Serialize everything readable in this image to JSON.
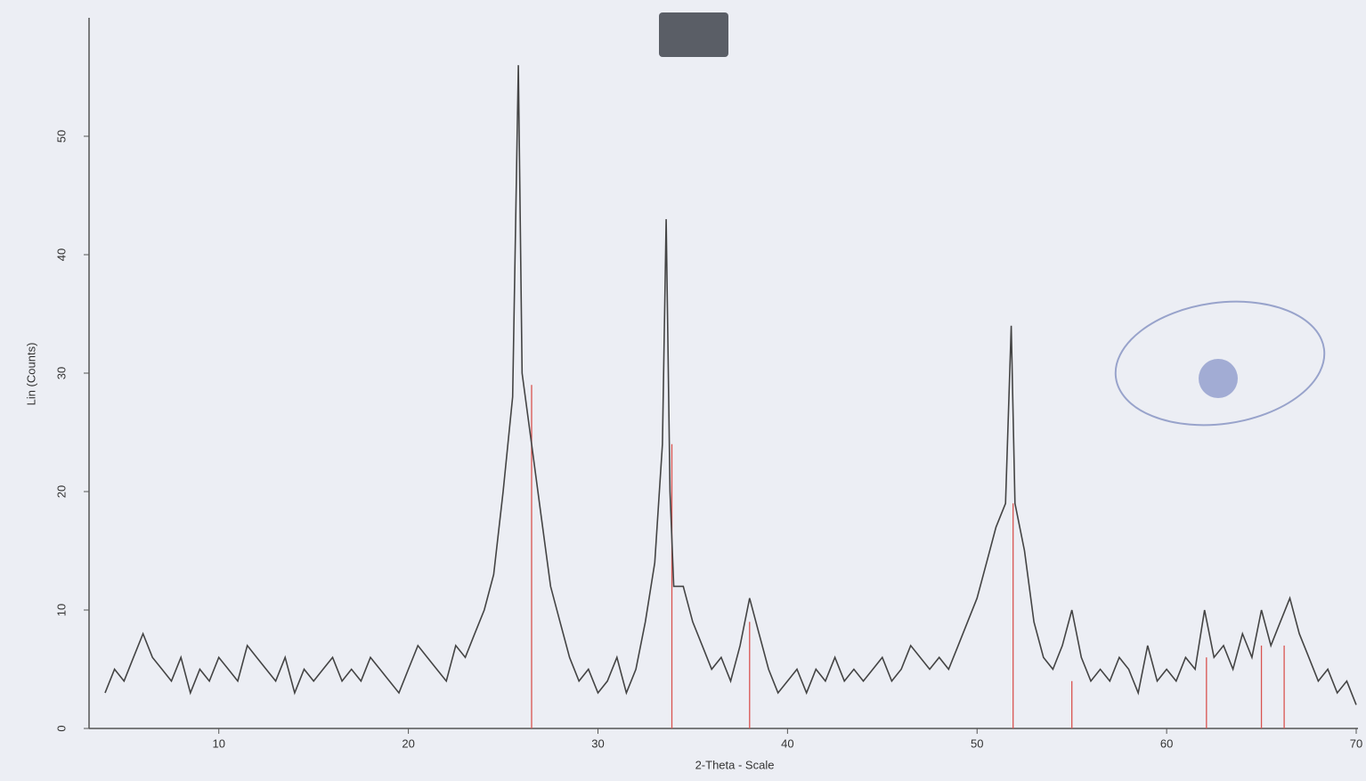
{
  "chart_data": {
    "type": "line",
    "xlabel": "2-Theta - Scale",
    "ylabel": "Lin (Counts)",
    "xlim": [
      4,
      70
    ],
    "xticks": [
      10,
      20,
      30,
      40,
      50,
      60,
      70
    ],
    "ylim": [
      0,
      60
    ],
    "yticks": [
      0,
      10,
      20,
      30,
      40,
      50
    ],
    "series": [
      {
        "color": "#444444",
        "x": [
          4,
          4.5,
          5,
          5.5,
          6,
          6.5,
          7,
          7.5,
          8,
          8.5,
          9,
          9.5,
          10,
          10.5,
          11,
          11.5,
          12,
          12.5,
          13,
          13.5,
          14,
          14.5,
          15,
          15.5,
          16,
          16.5,
          17,
          17.5,
          18,
          18.5,
          19,
          19.5,
          20,
          20.5,
          21,
          21.5,
          22,
          22.5,
          23,
          23.5,
          24,
          24.5,
          25,
          25.5,
          25.8,
          26,
          26.5,
          27,
          27.5,
          28,
          28.5,
          29,
          29.5,
          30,
          30.5,
          31,
          31.5,
          32,
          32.5,
          33,
          33.4,
          33.6,
          33.8,
          34,
          34.5,
          35,
          35.5,
          36,
          36.5,
          37,
          37.5,
          38,
          38.5,
          39,
          39.5,
          40,
          40.5,
          41,
          41.5,
          42,
          42.5,
          43,
          43.5,
          44,
          44.5,
          45,
          45.5,
          46,
          46.5,
          47,
          47.5,
          48,
          48.5,
          49,
          49.5,
          50,
          50.5,
          51,
          51.5,
          51.8,
          52,
          52.5,
          53,
          53.5,
          54,
          54.5,
          55,
          55.5,
          56,
          56.5,
          57,
          57.5,
          58,
          58.5,
          59,
          59.5,
          60,
          60.5,
          61,
          61.5,
          62,
          62.5,
          63,
          63.5,
          64,
          64.5,
          65,
          65.5,
          66,
          66.5,
          67,
          67.5,
          68,
          68.5,
          69,
          69.5,
          70
        ],
        "values": [
          3,
          5,
          4,
          6,
          8,
          6,
          5,
          4,
          6,
          3,
          5,
          4,
          6,
          5,
          4,
          7,
          6,
          5,
          4,
          6,
          3,
          5,
          4,
          5,
          6,
          4,
          5,
          4,
          6,
          5,
          4,
          3,
          5,
          7,
          6,
          5,
          4,
          7,
          6,
          8,
          10,
          13,
          20,
          28,
          56,
          30,
          24,
          18,
          12,
          9,
          6,
          4,
          5,
          3,
          4,
          6,
          3,
          5,
          9,
          14,
          24,
          43,
          20,
          12,
          12,
          9,
          7,
          5,
          6,
          4,
          7,
          11,
          8,
          5,
          3,
          4,
          5,
          3,
          5,
          4,
          6,
          4,
          5,
          4,
          5,
          6,
          4,
          5,
          7,
          6,
          5,
          6,
          5,
          7,
          9,
          11,
          14,
          17,
          19,
          34,
          19,
          15,
          9,
          6,
          5,
          7,
          10,
          6,
          4,
          5,
          4,
          6,
          5,
          3,
          7,
          4,
          5,
          4,
          6,
          5,
          10,
          6,
          7,
          5,
          8,
          6,
          10,
          7,
          9,
          11,
          8,
          6,
          4,
          5,
          3,
          4,
          2
        ]
      }
    ],
    "reference_lines": {
      "color": "#d9534f",
      "x": [
        26.5,
        33.9,
        38,
        51.9,
        55,
        62.1,
        65,
        66.2
      ],
      "values": [
        29,
        24,
        9,
        19,
        4,
        6,
        7,
        7
      ]
    }
  }
}
